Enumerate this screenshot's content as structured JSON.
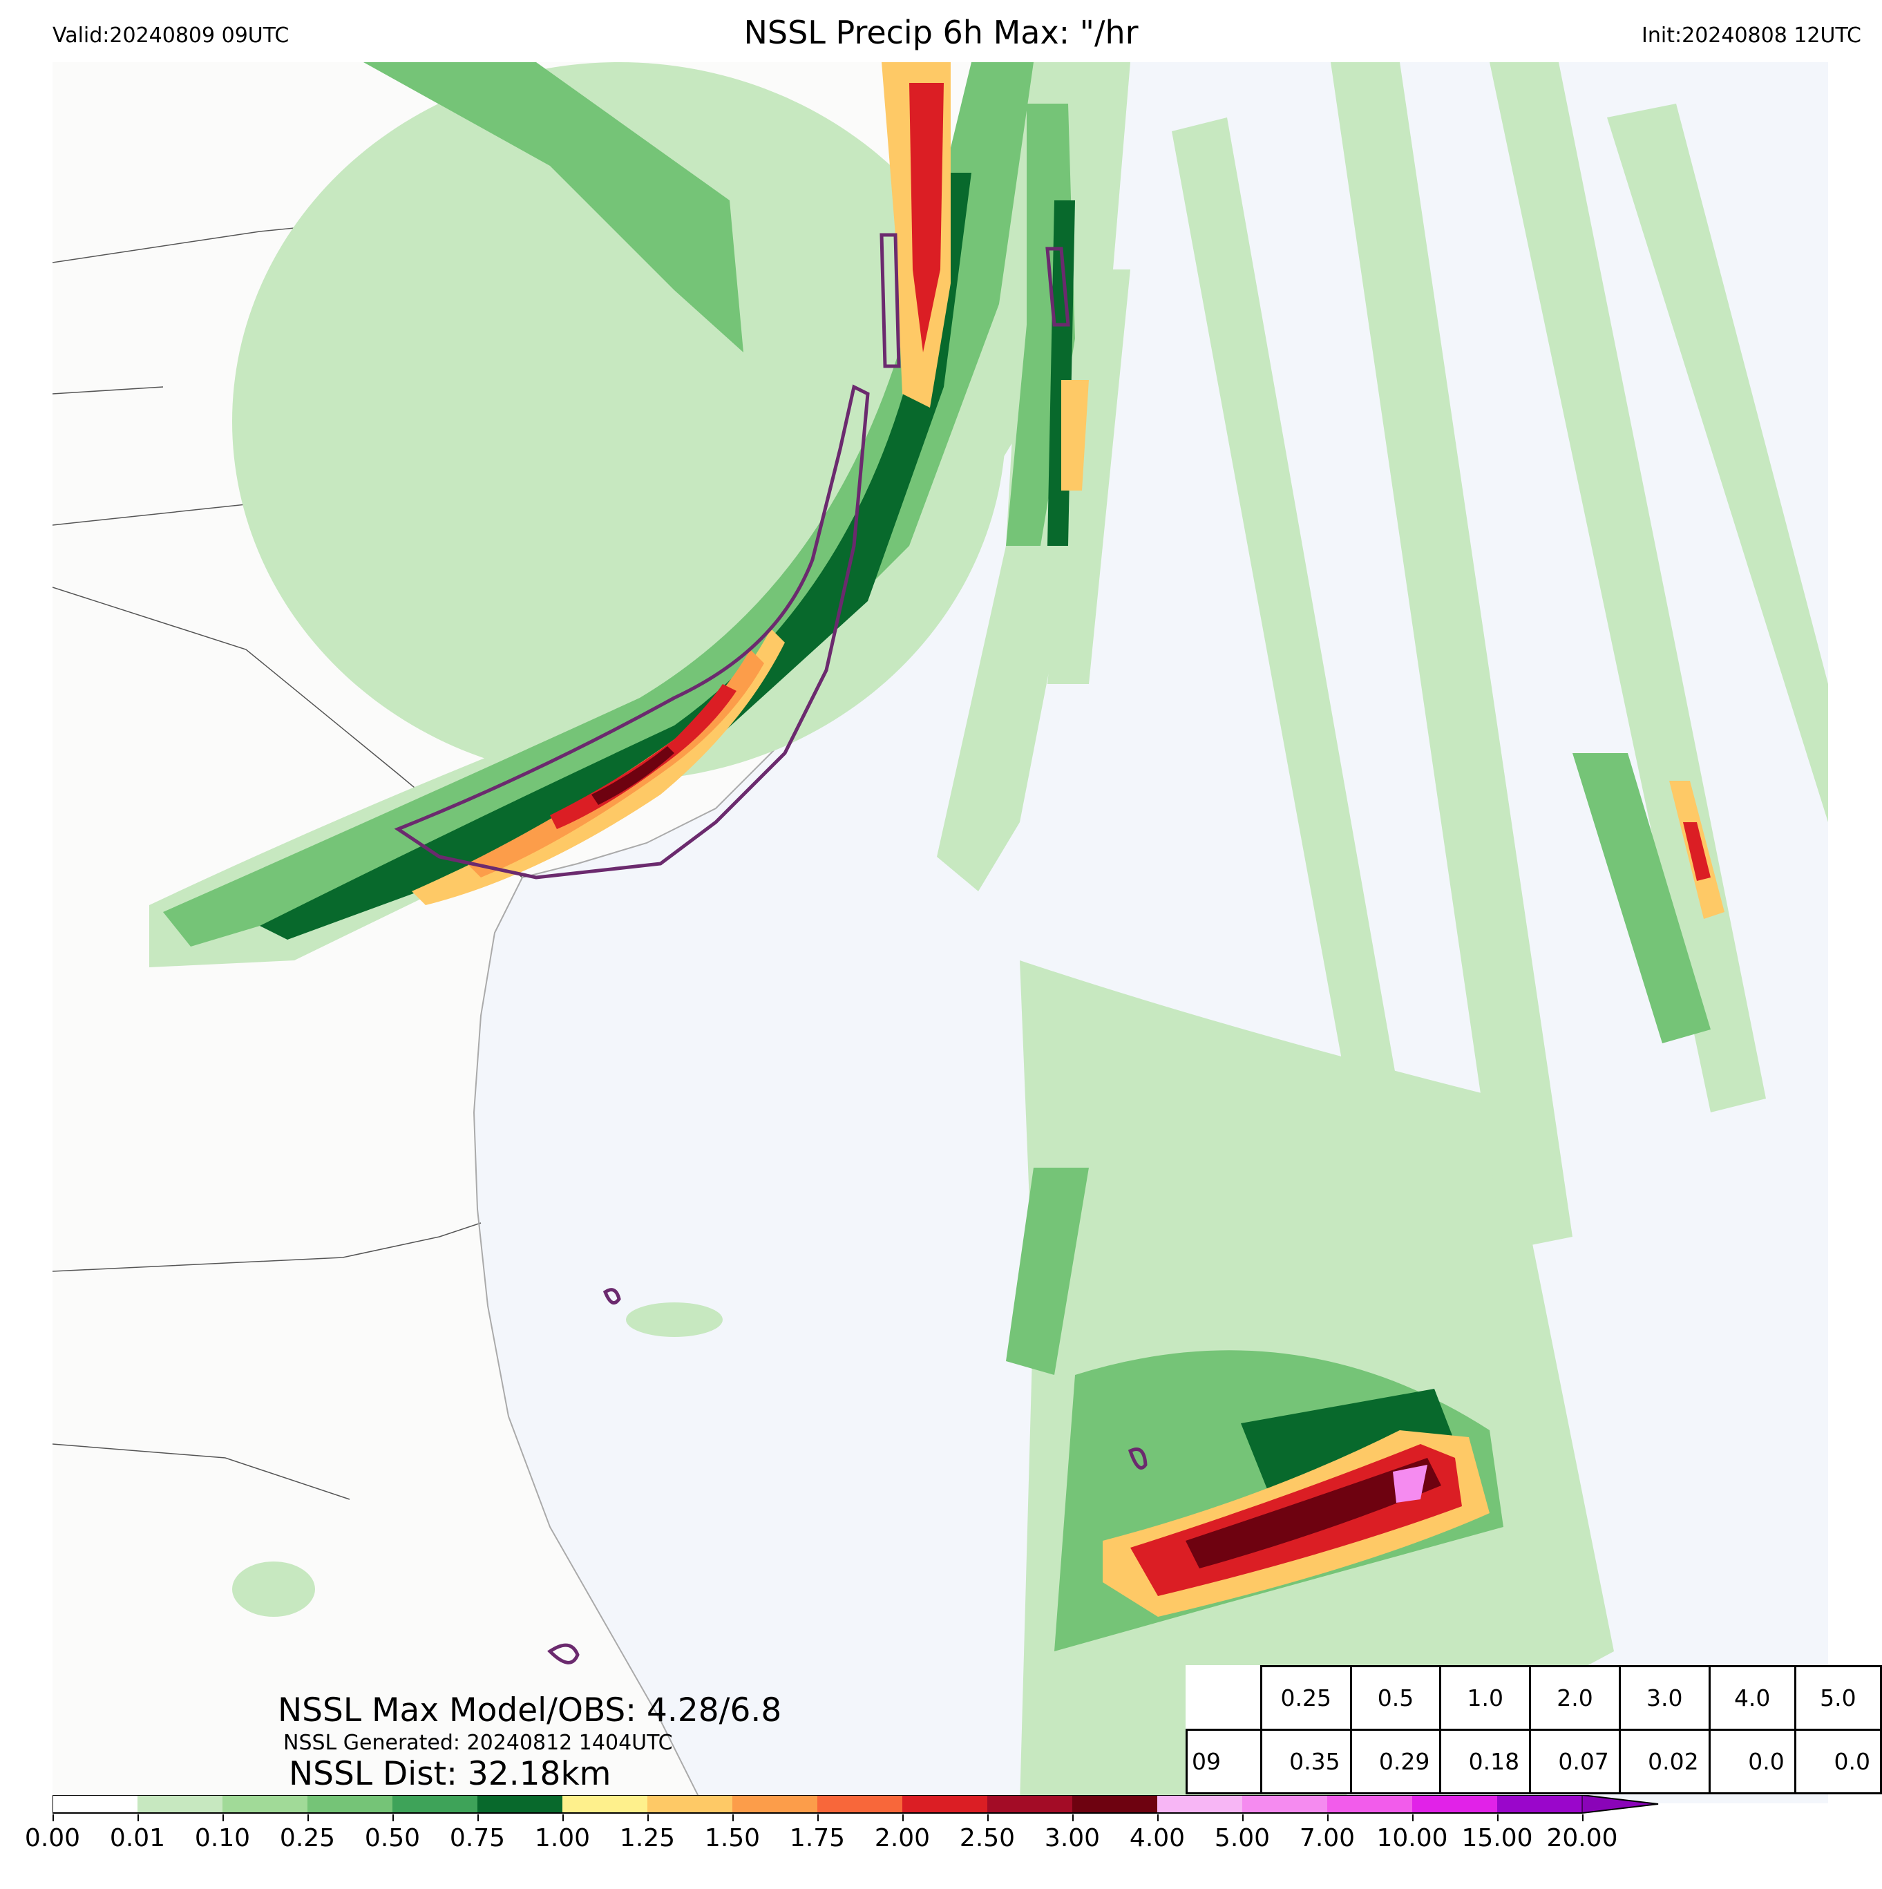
{
  "header": {
    "valid": "Valid:20240809 09UTC",
    "title": "NSSL Precip 6h Max: \"/hr",
    "init": "Init:20240808 12UTC"
  },
  "annotations": {
    "max_model_obs": "NSSL Max Model/OBS: 4.28/6.8",
    "generated": "NSSL Generated: 20240812 1404UTC",
    "dist": "NSSL Dist: 32.18km"
  },
  "stats_table": {
    "thresholds": [
      "0.25",
      "0.5",
      "1.0",
      "2.0",
      "3.0",
      "4.0",
      "5.0"
    ],
    "row_label": "09",
    "values": [
      "0.35",
      "0.29",
      "0.18",
      "0.07",
      "0.02",
      "0.0",
      "0.0"
    ]
  },
  "colorbar": {
    "ticks": [
      "0.00",
      "0.01",
      "0.10",
      "0.25",
      "0.50",
      "0.75",
      "1.00",
      "1.25",
      "1.50",
      "1.75",
      "2.00",
      "2.50",
      "3.00",
      "4.00",
      "5.00",
      "7.00",
      "10.00",
      "15.00",
      "20.00"
    ],
    "colors": [
      "#ffffff",
      "#c7e8c0",
      "#a1da98",
      "#75c477",
      "#3ea359",
      "#08692c",
      "#fef08c",
      "#fec966",
      "#fc9d4a",
      "#f8673a",
      "#db1e24",
      "#a30c26",
      "#6e0210",
      "#f7b6f5",
      "#f58bf0",
      "#f25ceb",
      "#e122e8",
      "#9a06cb"
    ],
    "extend_color": "#8a04b8"
  },
  "map": {
    "land_color": "#fbfbfa",
    "ocean_color": "#f3f6fb",
    "contour_color": "#6b2a6e"
  }
}
